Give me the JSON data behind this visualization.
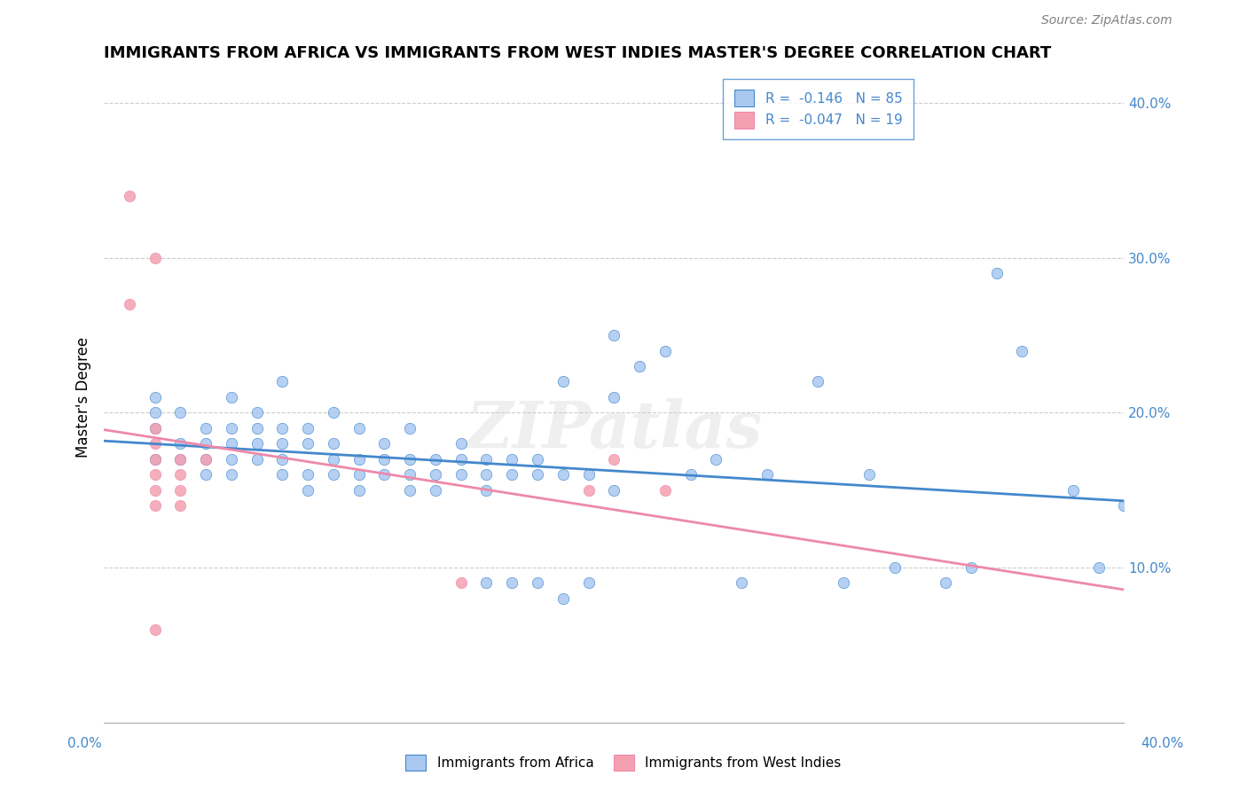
{
  "title": "IMMIGRANTS FROM AFRICA VS IMMIGRANTS FROM WEST INDIES MASTER'S DEGREE CORRELATION CHART",
  "source": "Source: ZipAtlas.com",
  "ylabel": "Master's Degree",
  "ylabel_right_vals": [
    0.4,
    0.3,
    0.2,
    0.1
  ],
  "xmin": 0.0,
  "xmax": 0.4,
  "ymin": 0.0,
  "ymax": 0.42,
  "legend1_label": "R =  -0.146   N = 85",
  "legend2_label": "R =  -0.047   N = 19",
  "africa_color": "#a8c8f0",
  "west_color": "#f4a0b0",
  "trendline_africa_color": "#4488cc",
  "trendline_west_color": "#ee88aa",
  "watermark": "ZIPatlas",
  "africa_scatter": [
    [
      0.02,
      0.19
    ],
    [
      0.02,
      0.2
    ],
    [
      0.02,
      0.21
    ],
    [
      0.02,
      0.17
    ],
    [
      0.03,
      0.2
    ],
    [
      0.03,
      0.18
    ],
    [
      0.03,
      0.17
    ],
    [
      0.04,
      0.19
    ],
    [
      0.04,
      0.18
    ],
    [
      0.04,
      0.17
    ],
    [
      0.04,
      0.16
    ],
    [
      0.05,
      0.21
    ],
    [
      0.05,
      0.19
    ],
    [
      0.05,
      0.18
    ],
    [
      0.05,
      0.17
    ],
    [
      0.05,
      0.16
    ],
    [
      0.06,
      0.2
    ],
    [
      0.06,
      0.19
    ],
    [
      0.06,
      0.18
    ],
    [
      0.06,
      0.17
    ],
    [
      0.07,
      0.22
    ],
    [
      0.07,
      0.19
    ],
    [
      0.07,
      0.18
    ],
    [
      0.07,
      0.17
    ],
    [
      0.07,
      0.16
    ],
    [
      0.08,
      0.19
    ],
    [
      0.08,
      0.18
    ],
    [
      0.08,
      0.16
    ],
    [
      0.08,
      0.15
    ],
    [
      0.09,
      0.2
    ],
    [
      0.09,
      0.18
    ],
    [
      0.09,
      0.17
    ],
    [
      0.09,
      0.16
    ],
    [
      0.1,
      0.19
    ],
    [
      0.1,
      0.17
    ],
    [
      0.1,
      0.16
    ],
    [
      0.1,
      0.15
    ],
    [
      0.11,
      0.18
    ],
    [
      0.11,
      0.17
    ],
    [
      0.11,
      0.16
    ],
    [
      0.12,
      0.19
    ],
    [
      0.12,
      0.17
    ],
    [
      0.12,
      0.16
    ],
    [
      0.12,
      0.15
    ],
    [
      0.13,
      0.17
    ],
    [
      0.13,
      0.16
    ],
    [
      0.13,
      0.15
    ],
    [
      0.14,
      0.18
    ],
    [
      0.14,
      0.17
    ],
    [
      0.14,
      0.16
    ],
    [
      0.15,
      0.17
    ],
    [
      0.15,
      0.16
    ],
    [
      0.15,
      0.15
    ],
    [
      0.15,
      0.09
    ],
    [
      0.16,
      0.17
    ],
    [
      0.16,
      0.16
    ],
    [
      0.16,
      0.09
    ],
    [
      0.17,
      0.17
    ],
    [
      0.17,
      0.16
    ],
    [
      0.17,
      0.09
    ],
    [
      0.18,
      0.22
    ],
    [
      0.18,
      0.16
    ],
    [
      0.18,
      0.08
    ],
    [
      0.19,
      0.16
    ],
    [
      0.19,
      0.09
    ],
    [
      0.2,
      0.25
    ],
    [
      0.2,
      0.21
    ],
    [
      0.2,
      0.15
    ],
    [
      0.21,
      0.23
    ],
    [
      0.22,
      0.24
    ],
    [
      0.23,
      0.16
    ],
    [
      0.24,
      0.17
    ],
    [
      0.25,
      0.09
    ],
    [
      0.26,
      0.16
    ],
    [
      0.28,
      0.22
    ],
    [
      0.29,
      0.09
    ],
    [
      0.3,
      0.16
    ],
    [
      0.31,
      0.1
    ],
    [
      0.33,
      0.09
    ],
    [
      0.34,
      0.1
    ],
    [
      0.35,
      0.29
    ],
    [
      0.36,
      0.24
    ],
    [
      0.38,
      0.15
    ],
    [
      0.39,
      0.1
    ],
    [
      0.4,
      0.14
    ]
  ],
  "west_scatter": [
    [
      0.01,
      0.34
    ],
    [
      0.01,
      0.27
    ],
    [
      0.02,
      0.3
    ],
    [
      0.02,
      0.19
    ],
    [
      0.02,
      0.18
    ],
    [
      0.02,
      0.17
    ],
    [
      0.02,
      0.16
    ],
    [
      0.02,
      0.15
    ],
    [
      0.02,
      0.14
    ],
    [
      0.02,
      0.06
    ],
    [
      0.03,
      0.17
    ],
    [
      0.03,
      0.16
    ],
    [
      0.03,
      0.15
    ],
    [
      0.03,
      0.14
    ],
    [
      0.04,
      0.17
    ],
    [
      0.14,
      0.09
    ],
    [
      0.19,
      0.15
    ],
    [
      0.2,
      0.17
    ],
    [
      0.22,
      0.15
    ]
  ]
}
